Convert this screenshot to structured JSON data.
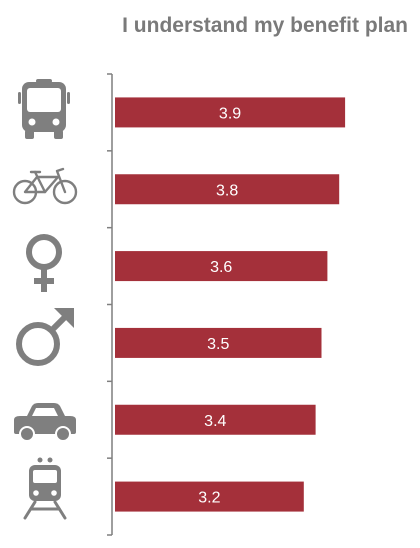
{
  "chart_data": {
    "type": "bar",
    "orientation": "horizontal",
    "title": "I understand my benefit plan",
    "categories": [
      "bus-icon",
      "bicycle-icon",
      "female-symbol-icon",
      "male-symbol-icon",
      "car-icon",
      "train-icon"
    ],
    "values": [
      3.9,
      3.8,
      3.6,
      3.5,
      3.4,
      3.2
    ],
    "data_labels": [
      "3.9",
      "3.8",
      "3.6",
      "3.5",
      "3.4",
      "3.2"
    ],
    "xlim": [
      0,
      4.2
    ],
    "xlabel": "",
    "ylabel": "",
    "grid": false,
    "bar_color": "#a4303a",
    "label_color": "#ffffff",
    "icon_color": "#7f7f7f",
    "title_color": "#7a7a7a",
    "axis_color": "#7f7f7f"
  }
}
